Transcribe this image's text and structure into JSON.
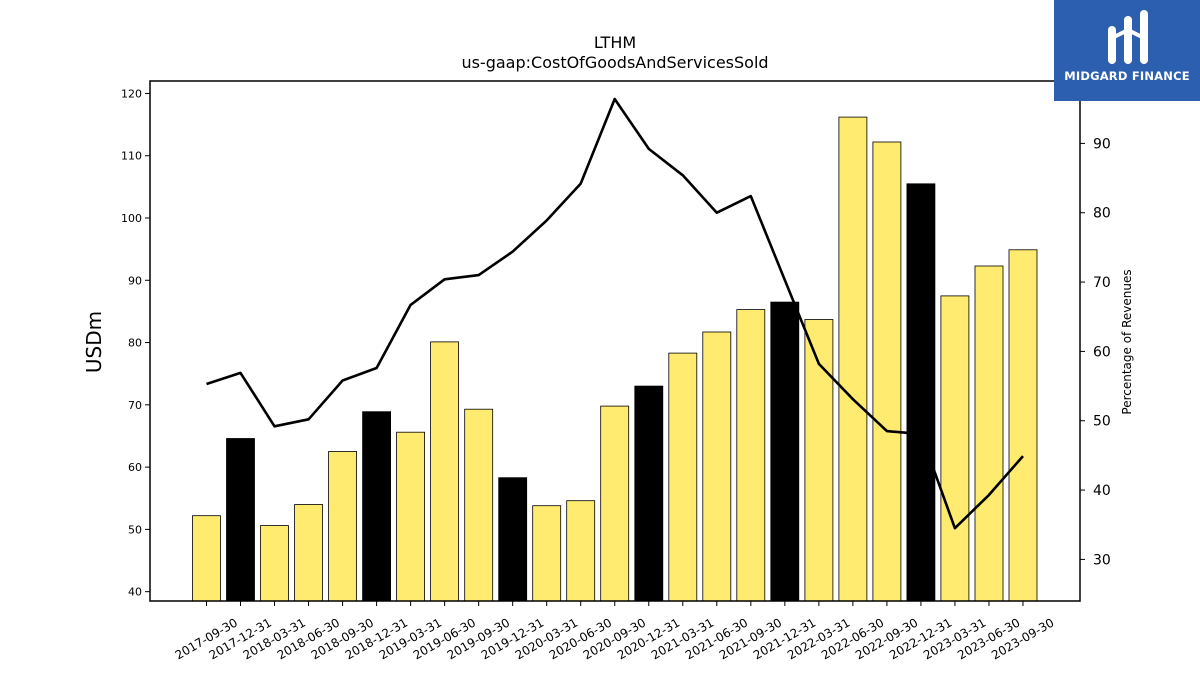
{
  "logo": {
    "text": "MIDGARD FINANCE",
    "background": "#2d5fb0"
  },
  "chart_data": {
    "type": "bar",
    "title": "LTHM",
    "subtitle": "us-gaap:CostOfGoodsAndServicesSold",
    "ylabel": "USDm",
    "y2label": "Percentage of Revenues",
    "ylim": [
      38.5,
      122
    ],
    "y2lim": [
      24,
      99
    ],
    "yticks": [
      40,
      50,
      60,
      70,
      80,
      90,
      100,
      110,
      120
    ],
    "y2ticks": [
      30,
      40,
      50,
      60,
      70,
      80,
      90
    ],
    "categories": [
      "2017-09-30",
      "2017-12-31",
      "2018-03-31",
      "2018-06-30",
      "2018-09-30",
      "2018-12-31",
      "2019-03-31",
      "2019-06-30",
      "2019-09-30",
      "2019-12-31",
      "2020-03-31",
      "2020-06-30",
      "2020-09-30",
      "2020-12-31",
      "2021-03-31",
      "2021-06-30",
      "2021-09-30",
      "2021-12-31",
      "2022-03-31",
      "2022-06-30",
      "2022-09-30",
      "2022-12-31",
      "2023-03-31",
      "2023-06-30",
      "2023-09-30"
    ],
    "series": [
      {
        "type": "bar",
        "values": [
          52.2,
          64.6,
          50.6,
          54.0,
          62.5,
          68.9,
          65.6,
          80.1,
          69.3,
          58.3,
          53.8,
          54.6,
          69.8,
          73.0,
          78.3,
          81.7,
          85.3,
          86.5,
          83.7,
          116.2,
          112.2,
          105.5,
          87.5,
          92.3,
          94.9
        ],
        "colors": [
          "#ffeb70",
          "#000000",
          "#ffeb70",
          "#ffeb70",
          "#ffeb70",
          "#000000",
          "#ffeb70",
          "#ffeb70",
          "#ffeb70",
          "#000000",
          "#ffeb70",
          "#ffeb70",
          "#ffeb70",
          "#000000",
          "#ffeb70",
          "#ffeb70",
          "#ffeb70",
          "#000000",
          "#ffeb70",
          "#ffeb70",
          "#ffeb70",
          "#000000",
          "#ffeb70",
          "#ffeb70",
          "#ffeb70"
        ]
      },
      {
        "type": "line",
        "axis": "right",
        "color": "#000000",
        "values": [
          55.3,
          56.9,
          49.2,
          50.2,
          55.8,
          57.6,
          66.7,
          70.4,
          71.0,
          74.4,
          78.9,
          84.2,
          96.4,
          89.2,
          85.4,
          80.0,
          82.4,
          70.3,
          58.2,
          53.1,
          48.5,
          48.1,
          34.5,
          39.3,
          44.9
        ]
      }
    ],
    "grid": false
  }
}
